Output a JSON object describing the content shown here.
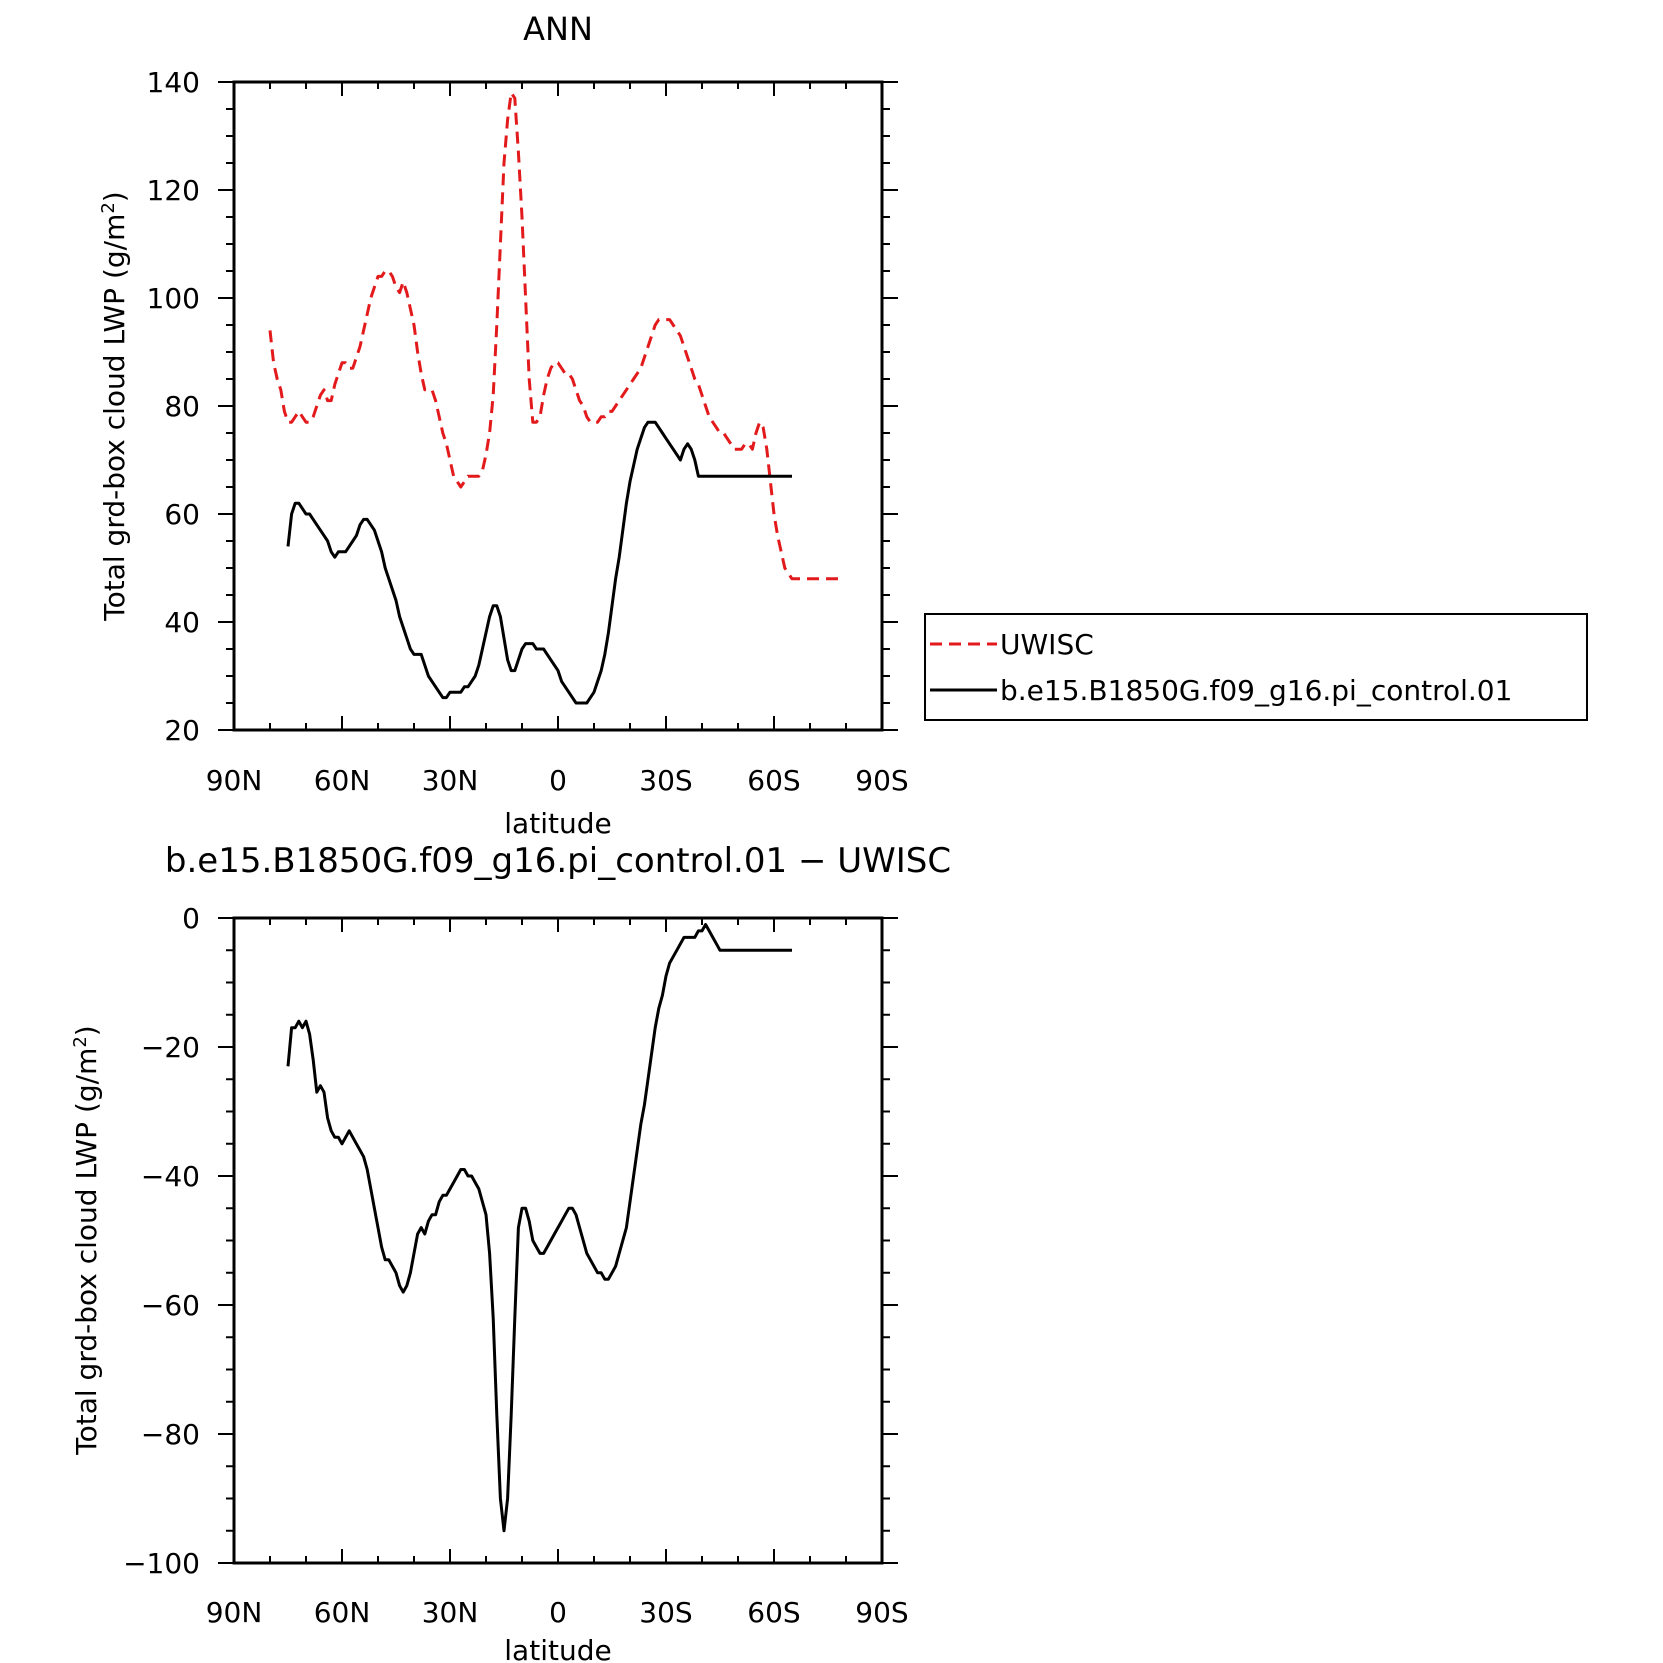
{
  "colors": {
    "obs": "#e31a1c",
    "model": "#000000",
    "axis": "#000000"
  },
  "chart_data": [
    {
      "type": "line",
      "title": "ANN",
      "xlabel": "latitude",
      "ylabel_main": "Total grd-box cloud LWP (g/m",
      "ylabel_sup": "2",
      "ylabel_close": ")",
      "xlim": [
        90,
        -90
      ],
      "ylim": [
        20,
        140
      ],
      "xticks": [
        90,
        60,
        30,
        0,
        -30,
        -60,
        -90
      ],
      "xtick_labels": [
        "90N",
        "60N",
        "30N",
        "0",
        "30S",
        "60S",
        "90S"
      ],
      "yticks": [
        20,
        40,
        60,
        80,
        100,
        120,
        140
      ],
      "ytick_labels": [
        "20",
        "40",
        "60",
        "80",
        "100",
        "120",
        "140"
      ],
      "legend_position": "right",
      "series": [
        {
          "name": "UWISC",
          "style": "dashed",
          "x": [
            80,
            79,
            78,
            77,
            76,
            75,
            74,
            73,
            72,
            71,
            70,
            69,
            68,
            67,
            66,
            65,
            64,
            63,
            62,
            61,
            60,
            59,
            58,
            57,
            56,
            55,
            54,
            53,
            52,
            51,
            50,
            49,
            48,
            47,
            46,
            45,
            44,
            43,
            42,
            41,
            40,
            39,
            38,
            37,
            36,
            35,
            34,
            33,
            32,
            31,
            30,
            29,
            28,
            27,
            26,
            25,
            24,
            23,
            22,
            21,
            20,
            19,
            18,
            17,
            16,
            15,
            14,
            13,
            12,
            11,
            10,
            9,
            8,
            7,
            6,
            5,
            4,
            3,
            2,
            1,
            0,
            -1,
            -2,
            -3,
            -4,
            -5,
            -6,
            -7,
            -8,
            -9,
            -10,
            -11,
            -12,
            -13,
            -14,
            -15,
            -16,
            -17,
            -18,
            -19,
            -20,
            -21,
            -22,
            -23,
            -24,
            -25,
            -26,
            -27,
            -28,
            -29,
            -30,
            -31,
            -32,
            -33,
            -34,
            -35,
            -36,
            -37,
            -38,
            -39,
            -40,
            -41,
            -42,
            -43,
            -44,
            -45,
            -46,
            -47,
            -48,
            -49,
            -50,
            -51,
            -52,
            -53,
            -54,
            -55,
            -56,
            -57,
            -58,
            -59,
            -60,
            -61,
            -62,
            -63,
            -64,
            -65,
            -66,
            -67,
            -68,
            -69,
            -70,
            -71,
            -72,
            -73,
            -74,
            -75,
            -76,
            -77,
            -78
          ],
          "y": [
            94,
            88,
            85,
            83,
            79,
            77,
            77,
            78,
            79,
            78,
            77,
            77,
            78,
            80,
            82,
            83,
            81,
            81,
            84,
            86,
            88,
            88,
            87,
            87,
            89,
            91,
            94,
            97,
            100,
            102,
            104,
            104,
            105,
            105,
            104,
            102,
            101,
            103,
            101,
            98,
            95,
            90,
            86,
            83,
            83,
            83,
            81,
            78,
            75,
            73,
            70,
            67,
            66,
            65,
            66,
            67,
            67,
            67,
            67,
            68,
            71,
            75,
            82,
            95,
            110,
            125,
            133,
            138,
            137,
            127,
            115,
            100,
            85,
            77,
            77,
            78,
            82,
            85,
            87,
            88,
            88,
            87,
            86,
            86,
            85,
            83,
            81,
            80,
            78,
            77,
            77,
            77,
            78,
            78,
            79,
            79,
            80,
            81,
            82,
            83,
            84,
            85,
            86,
            87,
            89,
            91,
            93,
            95,
            96,
            96,
            96,
            96,
            95,
            94,
            93,
            91,
            89,
            87,
            85,
            84,
            82,
            80,
            78,
            77,
            76,
            75,
            75,
            74,
            73,
            72,
            72,
            72,
            73,
            73,
            72,
            75,
            77,
            76,
            72,
            66,
            60,
            56,
            53,
            50,
            49,
            48,
            48,
            48,
            48,
            48,
            48,
            48,
            48,
            48,
            48,
            48,
            48,
            48,
            48
          ]
        },
        {
          "name": "b.e15.B1850G.f09_g16.pi_control.01",
          "style": "solid",
          "x": [
            75,
            74,
            73,
            72,
            71,
            70,
            69,
            68,
            67,
            66,
            65,
            64,
            63,
            62,
            61,
            60,
            59,
            58,
            57,
            56,
            55,
            54,
            53,
            52,
            51,
            50,
            49,
            48,
            47,
            46,
            45,
            44,
            43,
            42,
            41,
            40,
            39,
            38,
            37,
            36,
            35,
            34,
            33,
            32,
            31,
            30,
            29,
            28,
            27,
            26,
            25,
            24,
            23,
            22,
            21,
            20,
            19,
            18,
            17,
            16,
            15,
            14,
            13,
            12,
            11,
            10,
            9,
            8,
            7,
            6,
            5,
            4,
            3,
            2,
            1,
            0,
            -1,
            -2,
            -3,
            -4,
            -5,
            -6,
            -7,
            -8,
            -9,
            -10,
            -11,
            -12,
            -13,
            -14,
            -15,
            -16,
            -17,
            -18,
            -19,
            -20,
            -21,
            -22,
            -23,
            -24,
            -25,
            -26,
            -27,
            -28,
            -29,
            -30,
            -31,
            -32,
            -33,
            -34,
            -35,
            -36,
            -37,
            -38,
            -39,
            -40,
            -41,
            -42,
            -43,
            -44,
            -45,
            -46,
            -47,
            -48,
            -49,
            -50,
            -51,
            -52,
            -53,
            -54,
            -55,
            -56,
            -57,
            -58,
            -59,
            -60,
            -61,
            -62,
            -63,
            -64,
            -65
          ],
          "y": [
            54,
            60,
            62,
            62,
            61,
            60,
            60,
            59,
            58,
            57,
            56,
            55,
            53,
            52,
            53,
            53,
            53,
            54,
            55,
            56,
            58,
            59,
            59,
            58,
            57,
            55,
            53,
            50,
            48,
            46,
            44,
            41,
            39,
            37,
            35,
            34,
            34,
            34,
            32,
            30,
            29,
            28,
            27,
            26,
            26,
            27,
            27,
            27,
            27,
            28,
            28,
            29,
            30,
            32,
            35,
            38,
            41,
            43,
            43,
            41,
            37,
            33,
            31,
            31,
            33,
            35,
            36,
            36,
            36,
            35,
            35,
            35,
            34,
            33,
            32,
            31,
            29,
            28,
            27,
            26,
            25,
            25,
            25,
            25,
            26,
            27,
            29,
            31,
            34,
            38,
            43,
            48,
            52,
            57,
            62,
            66,
            69,
            72,
            74,
            76,
            77,
            77,
            77,
            76,
            75,
            74,
            73,
            72,
            71,
            70,
            72,
            73,
            72,
            70,
            67,
            67,
            67,
            67,
            67,
            67,
            67,
            67,
            67,
            67,
            67,
            67,
            67,
            67,
            67,
            67,
            67,
            67,
            67,
            67,
            67,
            67,
            67,
            67,
            67,
            67,
            67
          ]
        }
      ]
    },
    {
      "type": "line",
      "title": "b.e15.B1850G.f09_g16.pi_control.01 − UWISC",
      "xlabel": "latitude",
      "ylabel_main": "Total grd-box cloud LWP (g/m",
      "ylabel_sup": "2",
      "ylabel_close": ")",
      "xlim": [
        90,
        -90
      ],
      "ylim": [
        -100,
        0
      ],
      "xticks": [
        90,
        60,
        30,
        0,
        -30,
        -60,
        -90
      ],
      "xtick_labels": [
        "90N",
        "60N",
        "30N",
        "0",
        "30S",
        "60S",
        "90S"
      ],
      "yticks": [
        -100,
        -80,
        -60,
        -40,
        -20,
        0
      ],
      "ytick_labels": [
        "−100",
        "−80",
        "−60",
        "−40",
        "−20",
        "0"
      ],
      "series": [
        {
          "style": "solid",
          "x": [
            75,
            74,
            73,
            72,
            71,
            70,
            69,
            68,
            67,
            66,
            65,
            64,
            63,
            62,
            61,
            60,
            59,
            58,
            57,
            56,
            55,
            54,
            53,
            52,
            51,
            50,
            49,
            48,
            47,
            46,
            45,
            44,
            43,
            42,
            41,
            40,
            39,
            38,
            37,
            36,
            35,
            34,
            33,
            32,
            31,
            30,
            29,
            28,
            27,
            26,
            25,
            24,
            23,
            22,
            21,
            20,
            19,
            18,
            17,
            16,
            15,
            14,
            13,
            12,
            11,
            10,
            9,
            8,
            7,
            6,
            5,
            4,
            3,
            2,
            1,
            0,
            -1,
            -2,
            -3,
            -4,
            -5,
            -6,
            -7,
            -8,
            -9,
            -10,
            -11,
            -12,
            -13,
            -14,
            -15,
            -16,
            -17,
            -18,
            -19,
            -20,
            -21,
            -22,
            -23,
            -24,
            -25,
            -26,
            -27,
            -28,
            -29,
            -30,
            -31,
            -32,
            -33,
            -34,
            -35,
            -36,
            -37,
            -38,
            -39,
            -40,
            -41,
            -42,
            -43,
            -44,
            -45,
            -46,
            -47,
            -48,
            -49,
            -50,
            -51,
            -52,
            -53,
            -54,
            -55,
            -56,
            -57,
            -58,
            -59,
            -60,
            -61,
            -62,
            -63,
            -64,
            -65
          ],
          "y": [
            -23,
            -17,
            -17,
            -16,
            -17,
            -16,
            -18,
            -22,
            -27,
            -26,
            -27,
            -31,
            -33,
            -34,
            -34,
            -35,
            -34,
            -33,
            -34,
            -35,
            -36,
            -37,
            -39,
            -42,
            -45,
            -48,
            -51,
            -53,
            -53,
            -54,
            -55,
            -57,
            -58,
            -57,
            -55,
            -52,
            -49,
            -48,
            -49,
            -47,
            -46,
            -46,
            -44,
            -43,
            -43,
            -42,
            -41,
            -40,
            -39,
            -39,
            -40,
            -40,
            -41,
            -42,
            -44,
            -46,
            -52,
            -62,
            -77,
            -90,
            -95,
            -90,
            -77,
            -62,
            -48,
            -45,
            -45,
            -47,
            -50,
            -51,
            -52,
            -52,
            -51,
            -50,
            -49,
            -48,
            -47,
            -46,
            -45,
            -45,
            -46,
            -48,
            -50,
            -52,
            -53,
            -54,
            -55,
            -55,
            -56,
            -56,
            -55,
            -54,
            -52,
            -50,
            -48,
            -44,
            -40,
            -36,
            -32,
            -29,
            -25,
            -21,
            -17,
            -14,
            -12,
            -9,
            -7,
            -6,
            -5,
            -4,
            -3,
            -3,
            -3,
            -3,
            -2,
            -2,
            -1,
            -2,
            -3,
            -4,
            -5,
            -5,
            -5,
            -5,
            -5,
            -5,
            -5,
            -5,
            -5,
            -5,
            -5,
            -5,
            -5,
            -5,
            -5,
            -5,
            -5,
            -5,
            -5,
            -5,
            -5
          ]
        }
      ]
    }
  ]
}
